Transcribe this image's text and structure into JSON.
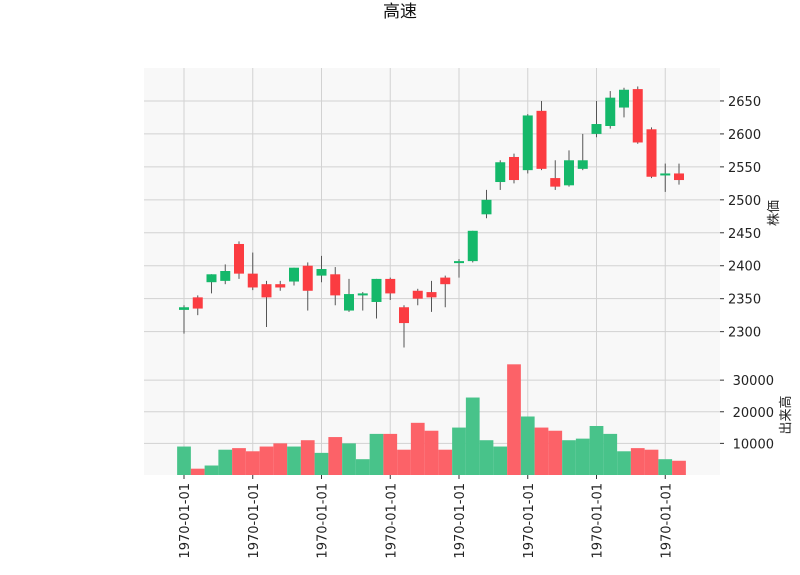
{
  "chart_data": {
    "type": "candlestick",
    "title": "高速",
    "price_axis_label": "株価",
    "volume_axis_label": "出来高",
    "x_tick_labels": [
      "1970-01-01",
      "1970-01-01",
      "1970-01-01",
      "1970-01-01",
      "1970-01-01",
      "1970-01-01",
      "1970-01-01",
      "1970-01-01"
    ],
    "price_ylim": [
      2260,
      2700
    ],
    "price_ticks": [
      2300,
      2350,
      2400,
      2450,
      2500,
      2550,
      2600,
      2650
    ],
    "volume_ylim": [
      0,
      37000
    ],
    "volume_ticks": [
      10000,
      20000,
      30000
    ],
    "grid": true,
    "up_color": "#14b86a",
    "down_color": "#fb3c41",
    "up_volume_color": "#48c38a",
    "down_volume_color": "#fc6268",
    "candles": [
      {
        "open": 2333,
        "high": 2340,
        "low": 2297,
        "close": 2337,
        "volume": 9000
      },
      {
        "open": 2352,
        "high": 2355,
        "low": 2325,
        "close": 2335,
        "volume": 2000
      },
      {
        "open": 2375,
        "high": 2387,
        "low": 2358,
        "close": 2387,
        "volume": 3000
      },
      {
        "open": 2377,
        "high": 2402,
        "low": 2372,
        "close": 2392,
        "volume": 8000
      },
      {
        "open": 2433,
        "high": 2437,
        "low": 2380,
        "close": 2388,
        "volume": 8500
      },
      {
        "open": 2388,
        "high": 2420,
        "low": 2363,
        "close": 2367,
        "volume": 7500
      },
      {
        "open": 2372,
        "high": 2377,
        "low": 2307,
        "close": 2352,
        "volume": 9000
      },
      {
        "open": 2372,
        "high": 2377,
        "low": 2362,
        "close": 2367,
        "volume": 10000
      },
      {
        "open": 2376,
        "high": 2397,
        "low": 2370,
        "close": 2397,
        "volume": 9000
      },
      {
        "open": 2400,
        "high": 2405,
        "low": 2332,
        "close": 2362,
        "volume": 11000
      },
      {
        "open": 2385,
        "high": 2415,
        "low": 2375,
        "close": 2395,
        "volume": 7000
      },
      {
        "open": 2387,
        "high": 2398,
        "low": 2340,
        "close": 2355,
        "volume": 12000
      },
      {
        "open": 2332,
        "high": 2380,
        "low": 2330,
        "close": 2357,
        "volume": 10000
      },
      {
        "open": 2355,
        "high": 2360,
        "low": 2332,
        "close": 2358,
        "volume": 5000
      },
      {
        "open": 2345,
        "high": 2380,
        "low": 2320,
        "close": 2380,
        "volume": 13000
      },
      {
        "open": 2380,
        "high": 2382,
        "low": 2348,
        "close": 2358,
        "volume": 13000
      },
      {
        "open": 2337,
        "high": 2340,
        "low": 2276,
        "close": 2313,
        "volume": 8000
      },
      {
        "open": 2362,
        "high": 2365,
        "low": 2340,
        "close": 2350,
        "volume": 16500
      },
      {
        "open": 2360,
        "high": 2377,
        "low": 2330,
        "close": 2352,
        "volume": 14000
      },
      {
        "open": 2382,
        "high": 2385,
        "low": 2337,
        "close": 2372,
        "volume": 8000
      },
      {
        "open": 2405,
        "high": 2410,
        "low": 2382,
        "close": 2407,
        "volume": 15000
      },
      {
        "open": 2407,
        "high": 2453,
        "low": 2405,
        "close": 2453,
        "volume": 24500
      },
      {
        "open": 2478,
        "high": 2515,
        "low": 2472,
        "close": 2500,
        "volume": 11000
      },
      {
        "open": 2527,
        "high": 2560,
        "low": 2515,
        "close": 2557,
        "volume": 9000
      },
      {
        "open": 2565,
        "high": 2570,
        "low": 2525,
        "close": 2530,
        "volume": 35000
      },
      {
        "open": 2545,
        "high": 2630,
        "low": 2540,
        "close": 2628,
        "volume": 18500
      },
      {
        "open": 2635,
        "high": 2650,
        "low": 2545,
        "close": 2547,
        "volume": 15000
      },
      {
        "open": 2533,
        "high": 2560,
        "low": 2515,
        "close": 2520,
        "volume": 14000
      },
      {
        "open": 2522,
        "high": 2575,
        "low": 2520,
        "close": 2560,
        "volume": 11000
      },
      {
        "open": 2547,
        "high": 2600,
        "low": 2545,
        "close": 2560,
        "volume": 11500
      },
      {
        "open": 2600,
        "high": 2650,
        "low": 2595,
        "close": 2615,
        "volume": 15500
      },
      {
        "open": 2612,
        "high": 2665,
        "low": 2608,
        "close": 2655,
        "volume": 13000
      },
      {
        "open": 2640,
        "high": 2670,
        "low": 2625,
        "close": 2667,
        "volume": 7500
      },
      {
        "open": 2668,
        "high": 2672,
        "low": 2585,
        "close": 2587,
        "volume": 8500
      },
      {
        "open": 2607,
        "high": 2610,
        "low": 2533,
        "close": 2535,
        "volume": 8000
      },
      {
        "open": 2537,
        "high": 2555,
        "low": 2512,
        "close": 2540,
        "volume": 5000
      },
      {
        "open": 2540,
        "high": 2555,
        "low": 2523,
        "close": 2530,
        "volume": 4500
      }
    ]
  }
}
